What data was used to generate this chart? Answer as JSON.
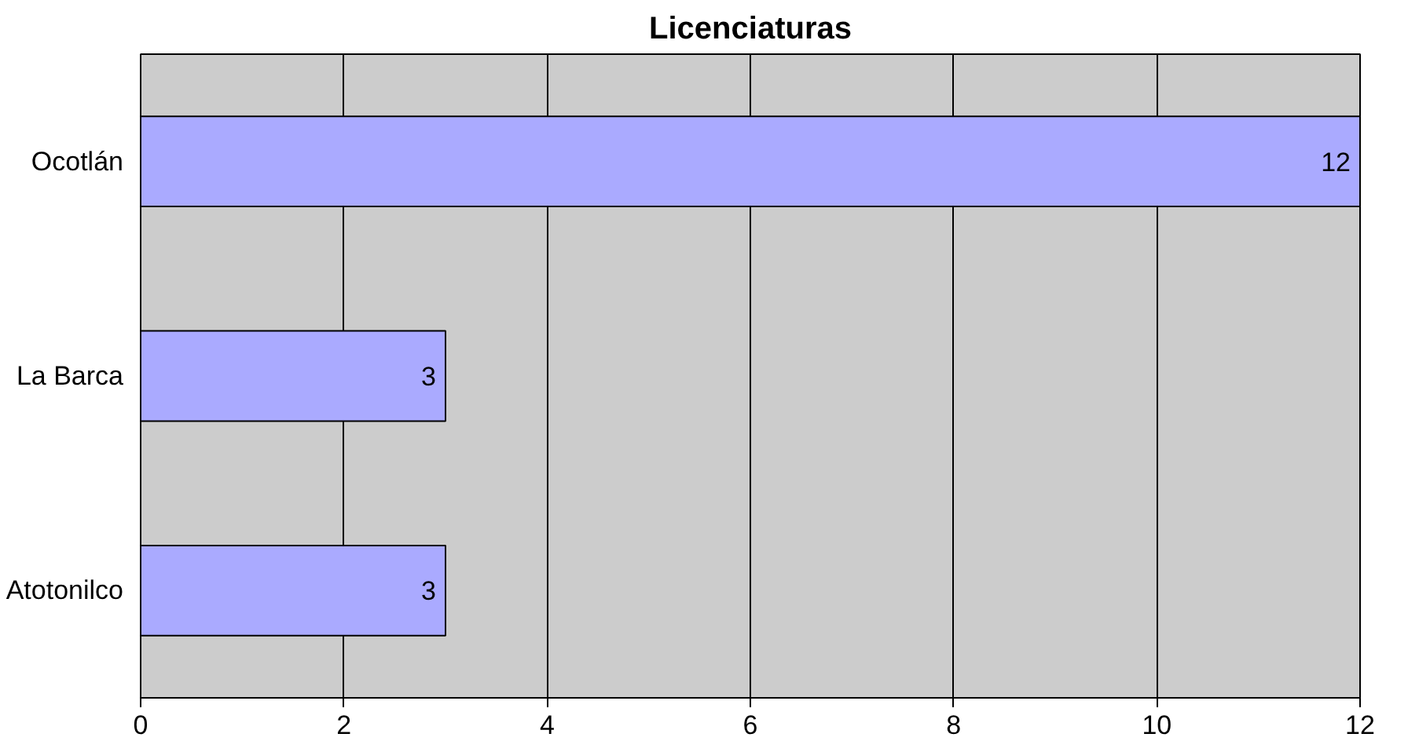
{
  "chart_data": {
    "type": "bar",
    "orientation": "horizontal",
    "title": "Licenciaturas",
    "categories": [
      "Ocotlán",
      "La Barca",
      "Atotonilco"
    ],
    "values": [
      12,
      3,
      3
    ],
    "color": "#aaaaff",
    "xlim": [
      0,
      12
    ],
    "xticks": [
      0,
      2,
      4,
      6,
      8,
      10,
      12
    ],
    "grid": "x",
    "data_labels": true
  }
}
